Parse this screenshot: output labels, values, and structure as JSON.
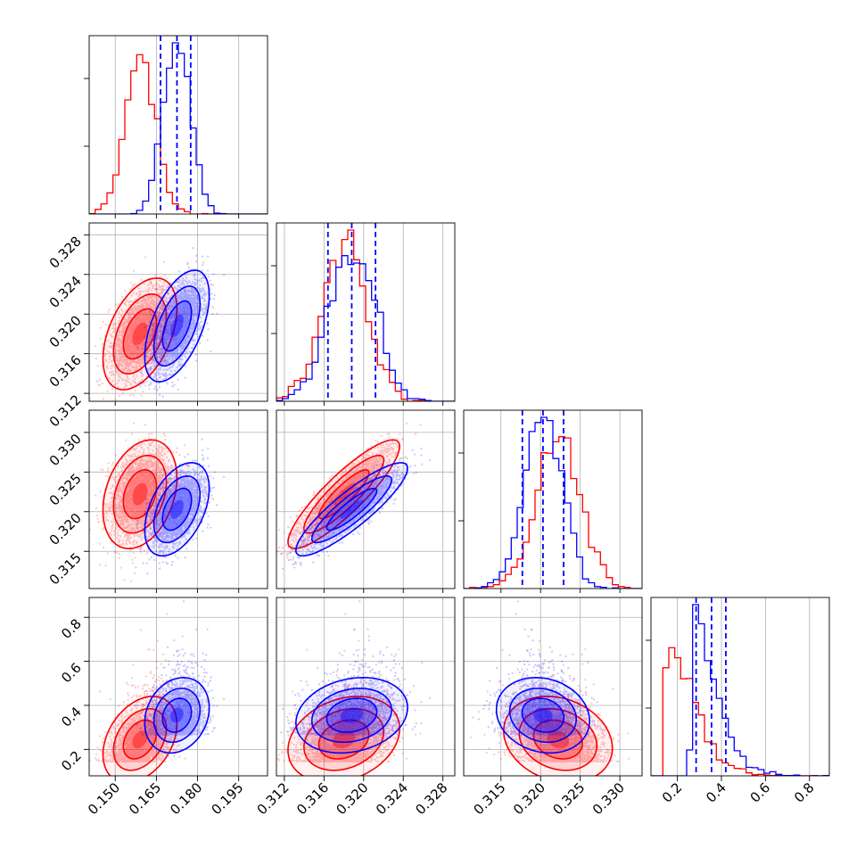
{
  "chart_data": {
    "type": "corner",
    "grid": true,
    "n_params": 4,
    "series": [
      {
        "color": "#ff0000",
        "means": [
          0.159,
          0.318,
          0.3222,
          0.245
        ],
        "stds": [
          0.0055,
          0.0023,
          0.0028,
          0.08
        ],
        "correlations": [
          [
            0,
            1,
            0.45
          ],
          [
            0,
            2,
            0.3
          ],
          [
            1,
            2,
            0.88
          ],
          [
            0,
            3,
            0.35
          ],
          [
            1,
            3,
            0.25
          ],
          [
            2,
            3,
            -0.2
          ]
        ]
      },
      {
        "color": "#0000ff",
        "means": [
          0.1725,
          0.3188,
          0.3203,
          0.355
        ],
        "stds": [
          0.0048,
          0.0023,
          0.0024,
          0.07
        ],
        "correlations": [
          [
            0,
            1,
            0.55
          ],
          [
            0,
            2,
            0.45
          ],
          [
            1,
            2,
            0.88
          ],
          [
            0,
            3,
            0.2
          ],
          [
            1,
            3,
            0.2
          ],
          [
            2,
            3,
            -0.15
          ]
        ]
      }
    ],
    "quantile_lines": {
      "color": "#0000ff",
      "values": [
        [
          0.1665,
          0.1725,
          0.1775
        ],
        [
          0.3164,
          0.3188,
          0.3212
        ],
        [
          0.3177,
          0.3203,
          0.3229
        ],
        [
          0.285,
          0.355,
          0.42
        ]
      ]
    },
    "axes": [
      {
        "range": [
          0.1405,
          0.2055
        ],
        "ticks": [
          0.15,
          0.165,
          0.18,
          0.195
        ],
        "tick_labels": [
          "0.150",
          "0.165",
          "0.180",
          "0.195"
        ]
      },
      {
        "range": [
          0.3112,
          0.3292
        ],
        "ticks": [
          0.312,
          0.316,
          0.32,
          0.324,
          0.328
        ],
        "tick_labels": [
          "0.312",
          "0.316",
          "0.320",
          "0.324",
          "0.328"
        ]
      },
      {
        "range": [
          0.3103,
          0.3328
        ],
        "ticks": [
          0.315,
          0.32,
          0.325,
          0.33
        ],
        "tick_labels": [
          "0.315",
          "0.320",
          "0.325",
          "0.330"
        ]
      },
      {
        "range": [
          0.08,
          0.89
        ],
        "ticks": [
          0.2,
          0.4,
          0.6,
          0.8
        ],
        "tick_labels": [
          "0.2",
          "0.4",
          "0.6",
          "0.8"
        ]
      }
    ]
  }
}
